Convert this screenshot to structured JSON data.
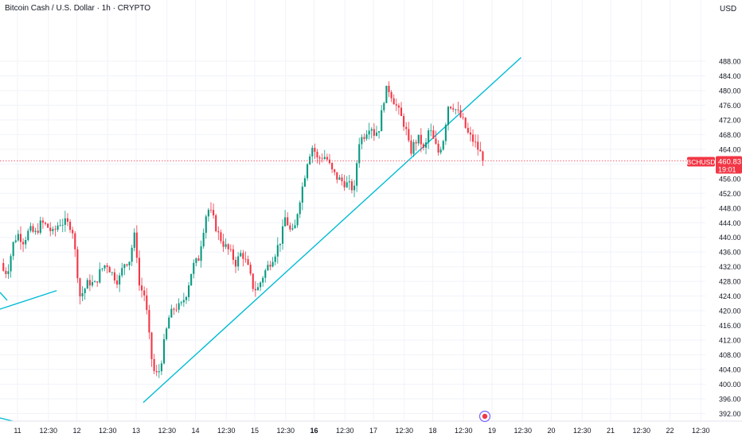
{
  "header": {
    "title": "Bitcoin Cash / U.S. Dollar · 1h · CRYPTO",
    "currency": "USD"
  },
  "price_tag": {
    "symbol": "BCHUSD",
    "price": "460.83",
    "countdown": "19:01",
    "color": "#f23645"
  },
  "colors": {
    "up": "#089981",
    "down": "#f23645",
    "trendline": "#00bcd4",
    "grid": "#f0f3fa",
    "axis_text": "#131722"
  },
  "chart_data": {
    "type": "candlestick",
    "symbol": "BCHUSD",
    "interval": "1h",
    "y_ticks": [
      392,
      396,
      400,
      404,
      408,
      412,
      416,
      420,
      424,
      428,
      432,
      436,
      440,
      444,
      448,
      452,
      456,
      460,
      464,
      468,
      472,
      476,
      480,
      484,
      488
    ],
    "ylim": [
      390,
      490
    ],
    "x_ticks": [
      {
        "label": "11",
        "day": 11.0,
        "bold": false
      },
      {
        "label": "12:30",
        "day": 11.52,
        "bold": false
      },
      {
        "label": "12",
        "day": 12.0,
        "bold": false
      },
      {
        "label": "12:30",
        "day": 12.52,
        "bold": false
      },
      {
        "label": "13",
        "day": 13.0,
        "bold": false
      },
      {
        "label": "12:30",
        "day": 13.52,
        "bold": false
      },
      {
        "label": "14",
        "day": 14.0,
        "bold": false
      },
      {
        "label": "12:30",
        "day": 14.52,
        "bold": false
      },
      {
        "label": "15",
        "day": 15.0,
        "bold": false
      },
      {
        "label": "12:30",
        "day": 15.52,
        "bold": false
      },
      {
        "label": "16",
        "day": 16.0,
        "bold": true
      },
      {
        "label": "12:30",
        "day": 16.52,
        "bold": false
      },
      {
        "label": "17",
        "day": 17.0,
        "bold": false
      },
      {
        "label": "12:30",
        "day": 17.52,
        "bold": false
      },
      {
        "label": "18",
        "day": 18.0,
        "bold": false
      },
      {
        "label": "12:30",
        "day": 18.52,
        "bold": false
      },
      {
        "label": "19",
        "day": 19.0,
        "bold": false
      },
      {
        "label": "12:30",
        "day": 19.52,
        "bold": false
      },
      {
        "label": "20",
        "day": 20.0,
        "bold": false
      },
      {
        "label": "12:30",
        "day": 20.52,
        "bold": false
      },
      {
        "label": "21",
        "day": 21.0,
        "bold": false
      },
      {
        "label": "12:30",
        "day": 21.52,
        "bold": false
      },
      {
        "label": "22",
        "day": 22.0,
        "bold": false
      },
      {
        "label": "12:30",
        "day": 22.52,
        "bold": false
      }
    ],
    "last_price": 460.83,
    "price_path": [
      [
        10.72,
        433
      ],
      [
        10.78,
        430
      ],
      [
        10.85,
        432
      ],
      [
        10.92,
        438
      ],
      [
        11.0,
        441
      ],
      [
        11.1,
        439
      ],
      [
        11.2,
        442
      ],
      [
        11.3,
        441
      ],
      [
        11.4,
        444
      ],
      [
        11.5,
        443
      ],
      [
        11.6,
        441
      ],
      [
        11.7,
        444
      ],
      [
        11.8,
        444
      ],
      [
        11.92,
        443
      ],
      [
        12.0,
        432
      ],
      [
        12.05,
        424
      ],
      [
        12.1,
        425
      ],
      [
        12.2,
        428
      ],
      [
        12.3,
        427
      ],
      [
        12.4,
        431
      ],
      [
        12.5,
        433
      ],
      [
        12.6,
        430
      ],
      [
        12.7,
        428
      ],
      [
        12.8,
        433
      ],
      [
        12.9,
        434
      ],
      [
        12.96,
        441
      ],
      [
        13.0,
        438
      ],
      [
        13.05,
        427
      ],
      [
        13.15,
        424
      ],
      [
        13.25,
        408
      ],
      [
        13.32,
        402
      ],
      [
        13.4,
        404
      ],
      [
        13.48,
        412
      ],
      [
        13.55,
        418
      ],
      [
        13.65,
        421
      ],
      [
        13.75,
        421
      ],
      [
        13.85,
        425
      ],
      [
        13.95,
        432
      ],
      [
        14.05,
        434
      ],
      [
        14.12,
        441
      ],
      [
        14.2,
        448
      ],
      [
        14.28,
        446
      ],
      [
        14.38,
        441
      ],
      [
        14.48,
        438
      ],
      [
        14.58,
        436
      ],
      [
        14.68,
        433
      ],
      [
        14.78,
        436
      ],
      [
        14.88,
        432
      ],
      [
        14.98,
        426
      ],
      [
        15.05,
        426
      ],
      [
        15.15,
        430
      ],
      [
        15.25,
        433
      ],
      [
        15.35,
        436
      ],
      [
        15.45,
        440
      ],
      [
        15.52,
        446
      ],
      [
        15.58,
        442
      ],
      [
        15.66,
        441
      ],
      [
        15.74,
        449
      ],
      [
        15.82,
        455
      ],
      [
        15.9,
        462
      ],
      [
        15.98,
        465
      ],
      [
        16.06,
        461
      ],
      [
        16.12,
        462
      ],
      [
        16.2,
        462
      ],
      [
        16.3,
        458
      ],
      [
        16.4,
        456
      ],
      [
        16.5,
        455
      ],
      [
        16.6,
        454
      ],
      [
        16.68,
        453
      ],
      [
        16.75,
        466
      ],
      [
        16.85,
        468
      ],
      [
        16.95,
        471
      ],
      [
        17.02,
        468
      ],
      [
        17.1,
        470
      ],
      [
        17.18,
        478
      ],
      [
        17.24,
        481
      ],
      [
        17.3,
        479
      ],
      [
        17.38,
        476
      ],
      [
        17.46,
        473
      ],
      [
        17.54,
        470
      ],
      [
        17.62,
        463
      ],
      [
        17.7,
        466
      ],
      [
        17.78,
        467
      ],
      [
        17.86,
        463
      ],
      [
        17.94,
        470
      ],
      [
        18.02,
        466
      ],
      [
        18.1,
        463
      ],
      [
        18.18,
        467
      ],
      [
        18.26,
        476
      ],
      [
        18.34,
        476
      ],
      [
        18.42,
        474
      ],
      [
        18.5,
        472
      ],
      [
        18.6,
        468
      ],
      [
        18.7,
        466
      ],
      [
        18.8,
        463
      ],
      [
        18.86,
        460.83
      ]
    ],
    "trendlines": [
      {
        "x": [
          13.12,
          19.49
        ],
        "y": [
          395.0,
          489.0
        ]
      },
      {
        "x": [
          10.62,
          11.66
        ],
        "y": [
          420.0,
          425.5
        ]
      }
    ]
  }
}
